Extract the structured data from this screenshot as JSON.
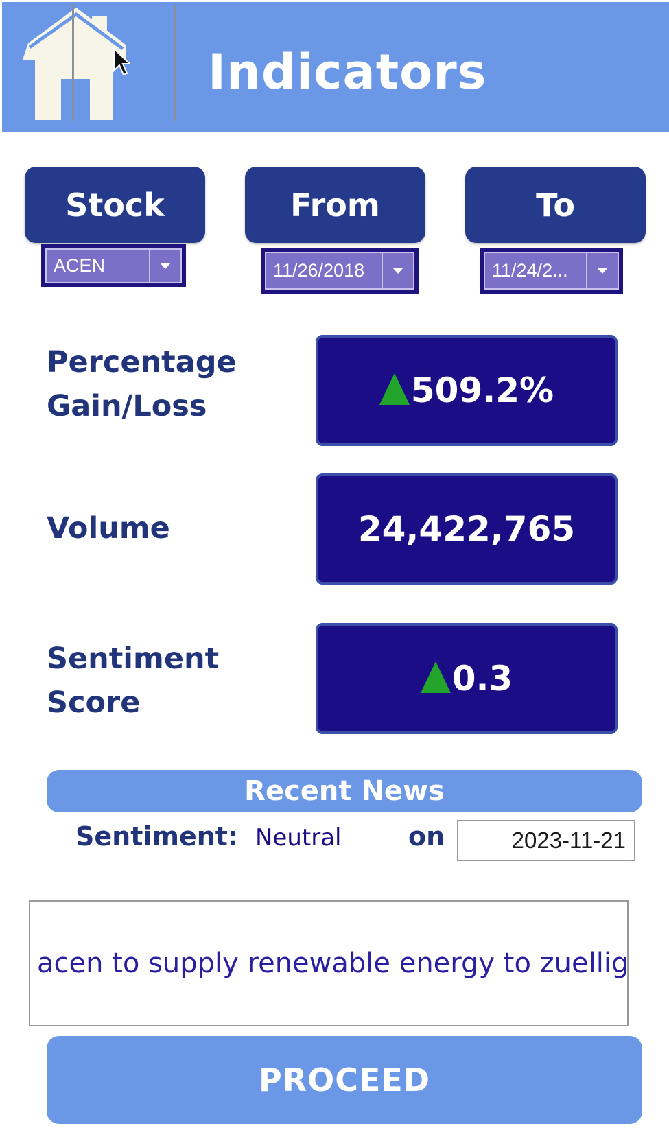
{
  "header": {
    "title": "Indicators",
    "home_icon": "home-icon",
    "color": "#6b98e6"
  },
  "filters": {
    "stock": {
      "label": "Stock",
      "value": "ACEN"
    },
    "from": {
      "label": "From",
      "value": "11/26/2018"
    },
    "to": {
      "label": "To",
      "value": "11/24/2..."
    }
  },
  "metrics": {
    "gain": {
      "label_line1": "Percentage",
      "label_line2": "Gain/Loss",
      "value": "509.2%",
      "trend": "up"
    },
    "volume": {
      "label": "Volume",
      "value": "24,422,765"
    },
    "sentiment": {
      "label_line1": "Sentiment",
      "label_line2": "Score",
      "value": "0.3",
      "trend": "up"
    }
  },
  "news": {
    "title": "Recent News",
    "sentiment_label": "Sentiment:",
    "sentiment_value": "Neutral",
    "on_label": "on",
    "date": "2023-11-21",
    "headline": "acen to supply renewable energy to zuellig"
  },
  "actions": {
    "proceed_label": "PROCEED"
  },
  "colors": {
    "accent": "#6b98e6",
    "button": "#263a8c",
    "metric_box": "#1b0d85",
    "up": "#22a52a"
  }
}
